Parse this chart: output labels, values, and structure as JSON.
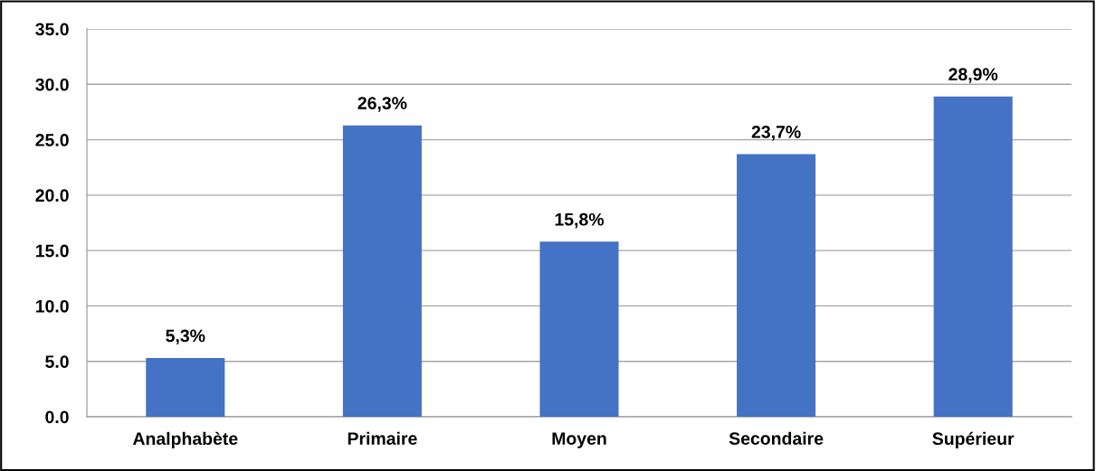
{
  "chart_data": {
    "type": "bar",
    "categories": [
      "Analphabète",
      "Primaire",
      "Moyen",
      "Secondaire",
      "Supérieur"
    ],
    "values": [
      5.3,
      26.3,
      15.8,
      23.7,
      28.9
    ],
    "value_labels": [
      "5,3%",
      "26,3%",
      "15,8%",
      "23,7%",
      "28,9%"
    ],
    "color": "#4472c4",
    "ylim": [
      0,
      35
    ],
    "yticks": [
      {
        "value": 0,
        "label": "0.0"
      },
      {
        "value": 5,
        "label": "5.0"
      },
      {
        "value": 10,
        "label": "10.0"
      },
      {
        "value": 15,
        "label": "15.0"
      },
      {
        "value": 20,
        "label": "20.0"
      },
      {
        "value": 25,
        "label": "25.0"
      },
      {
        "value": 30,
        "label": "30.0"
      },
      {
        "value": 35,
        "label": "35.0"
      }
    ],
    "grid": "y",
    "legend": false
  }
}
